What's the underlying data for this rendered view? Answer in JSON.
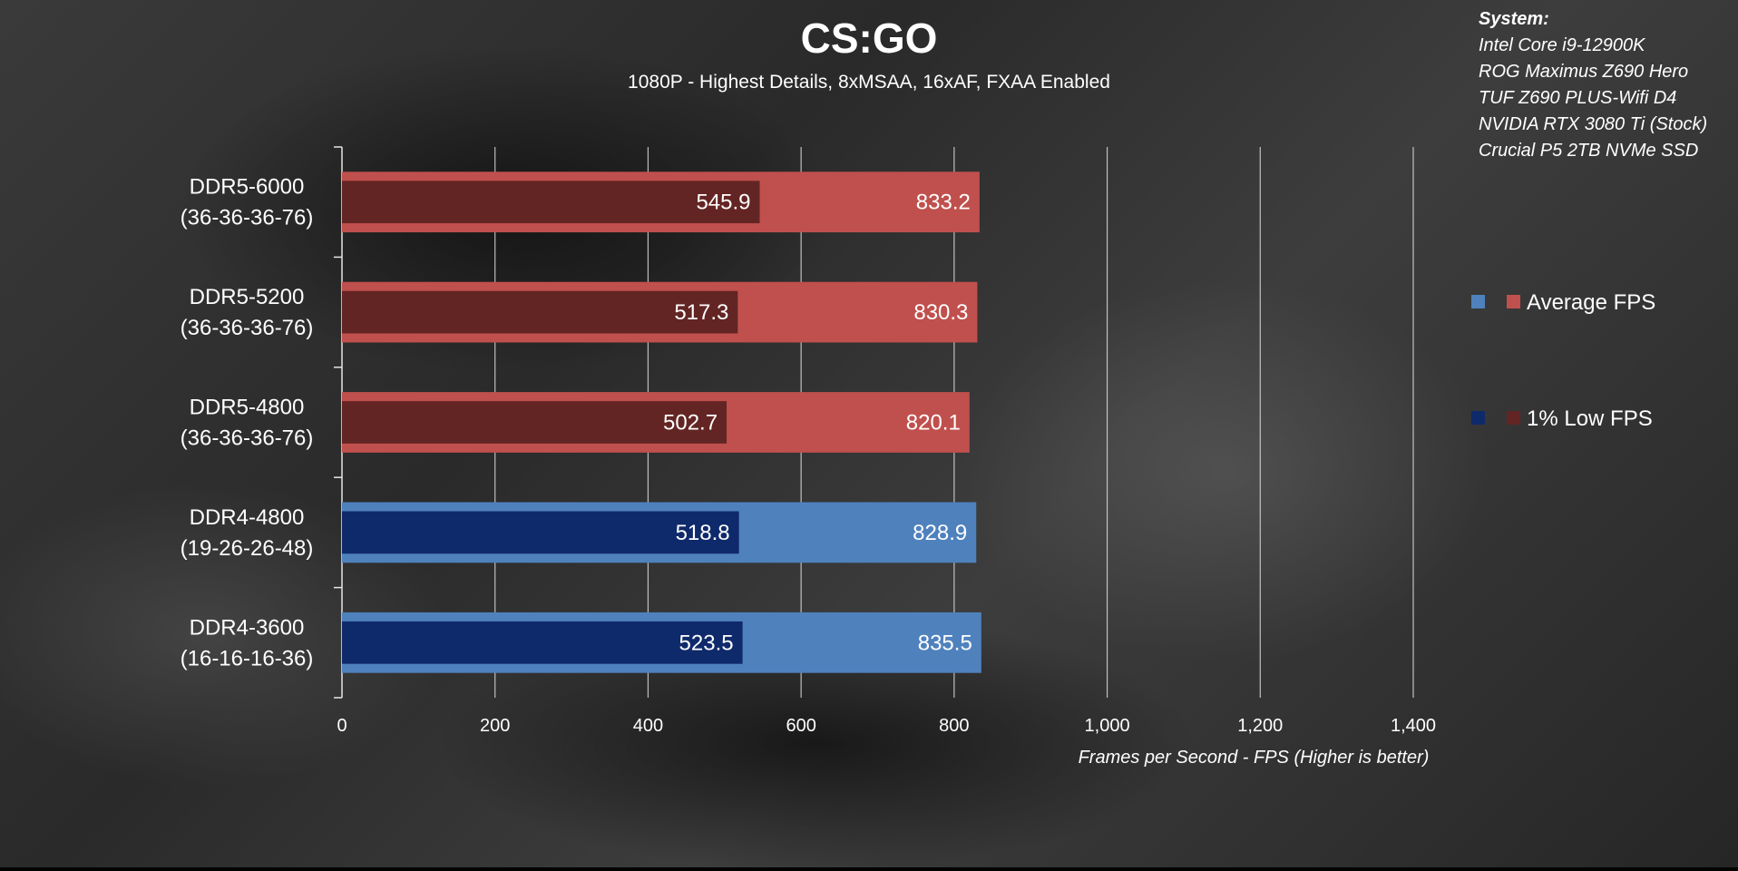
{
  "chart_data": {
    "type": "bar",
    "orientation": "horizontal",
    "title": "CS:GO",
    "subtitle": "1080P - Highest Details, 8xMSAA, 16xAF, FXAA Enabled",
    "xlabel": "Frames per Second - FPS (Higher is better)",
    "ylabel": "",
    "xlim": [
      0,
      1400
    ],
    "ticks": [
      "0",
      "200",
      "400",
      "600",
      "800",
      "1,000",
      "1,200",
      "1,400"
    ],
    "tick_values": [
      0,
      200,
      400,
      600,
      800,
      1000,
      1200,
      1400
    ],
    "grid": true,
    "legend_position": "right",
    "categories": [
      {
        "line1": "DDR5-6000",
        "line2": "(36-36-36-76)"
      },
      {
        "line1": "DDR5-5200",
        "line2": "(36-36-36-76)"
      },
      {
        "line1": "DDR5-4800",
        "line2": "(36-36-36-76)"
      },
      {
        "line1": "DDR4-4800",
        "line2": "(19-26-26-48)"
      },
      {
        "line1": "DDR4-3600",
        "line2": "(16-16-16-36)"
      }
    ],
    "series": [
      {
        "name": "Average FPS",
        "values": [
          833.2,
          830.3,
          820.1,
          828.9,
          835.5
        ],
        "labels": [
          "833.2",
          "830.3",
          "820.1",
          "828.9",
          "835.5"
        ]
      },
      {
        "name": "1% Low FPS",
        "values": [
          545.9,
          517.3,
          502.7,
          518.8,
          523.5
        ],
        "labels": [
          "545.9",
          "517.3",
          "502.7",
          "518.8",
          "523.5"
        ]
      }
    ],
    "bar_colors": {
      "ddr5_avg": "#c0504d",
      "ddr5_low": "#632523",
      "ddr4_avg": "#4f81bd",
      "ddr4_low": "#0f2a6b"
    },
    "bar_groups": [
      "ddr5",
      "ddr5",
      "ddr5",
      "ddr4",
      "ddr4"
    ],
    "legend": [
      {
        "label": "Average FPS",
        "swatches": [
          "#4f81bd",
          "#c0504d"
        ]
      },
      {
        "label": "1% Low FPS",
        "swatches": [
          "#0f2a6b",
          "#632523"
        ]
      }
    ]
  },
  "system": {
    "heading": "System:",
    "lines": [
      "Intel Core i9-12900K",
      "ROG Maximus Z690 Hero",
      "TUF Z690 PLUS-Wifi D4",
      "NVIDIA RTX 3080 Ti (Stock)",
      "Crucial P5 2TB NVMe SSD"
    ]
  }
}
